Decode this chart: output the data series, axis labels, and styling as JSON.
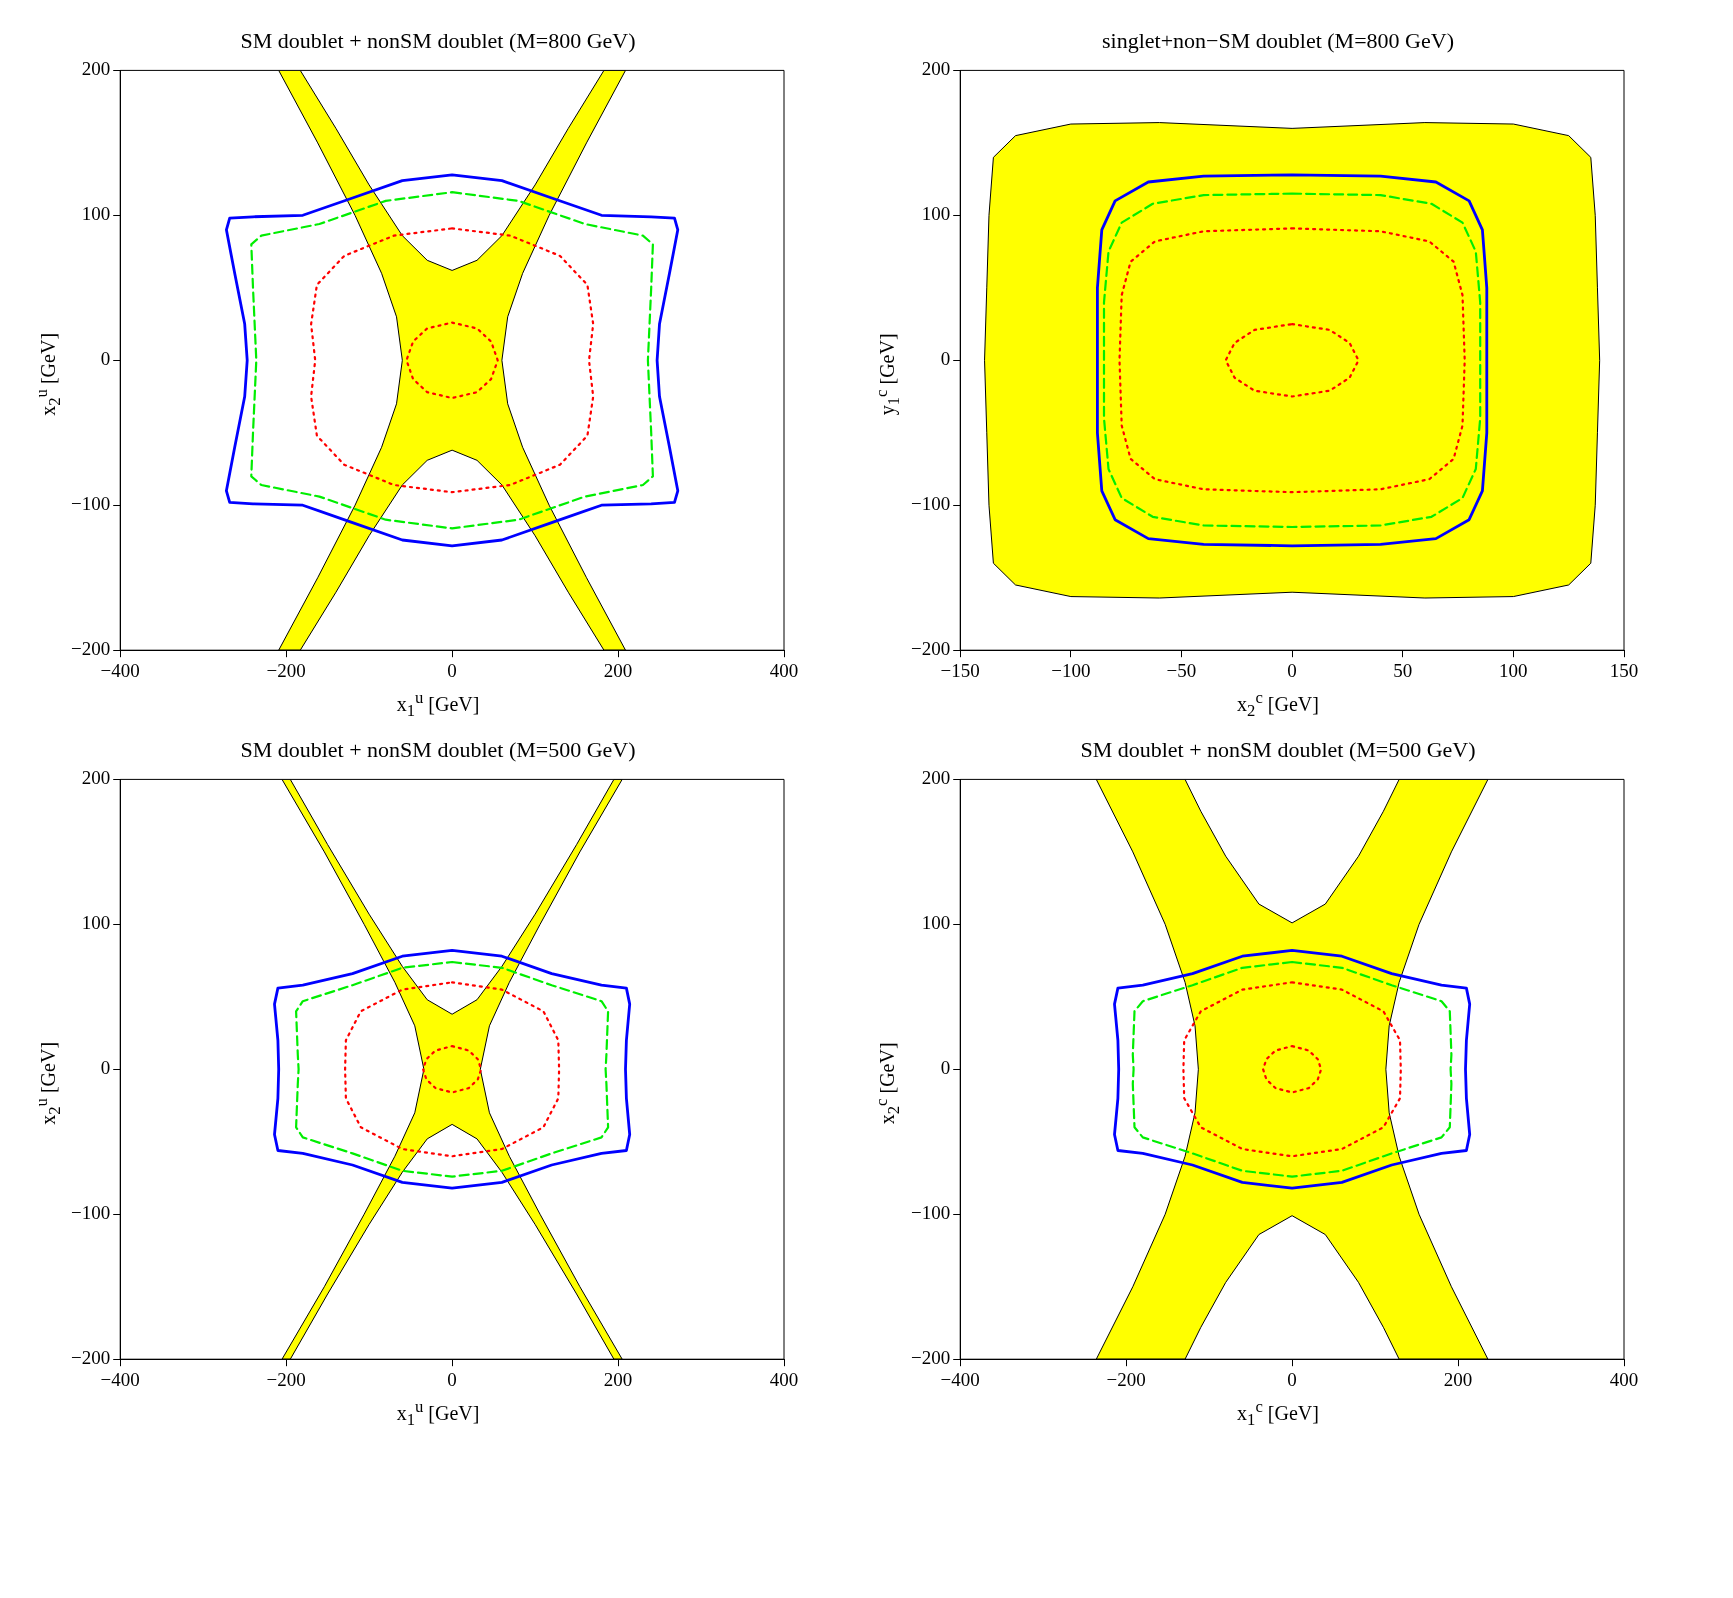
{
  "chart_data": [
    {
      "type": "area",
      "title": "SM doublet + nonSM doublet (M=800 GeV)",
      "xlabel": "x$_{1}$$^{u}$ [GeV]",
      "ylabel": "x$_{2}$$^{u}$ [GeV]",
      "xlim": [
        -400,
        400
      ],
      "ylim": [
        -200,
        200
      ],
      "xticks": [
        -400,
        -200,
        0,
        200,
        400
      ],
      "yticks": [
        -200,
        -100,
        0,
        100,
        200
      ],
      "grid": false,
      "legend": false,
      "series": [
        {
          "color": "#ffff00",
          "x": [
            -209,
            -162,
            -117,
            -85,
            -67,
            -60,
            -67,
            -85,
            -117,
            -162,
            -209,
            -183,
            -140,
            -100,
            -60,
            -30,
            0,
            30,
            60,
            100,
            140,
            183,
            209,
            162,
            117,
            85,
            67,
            60,
            67,
            85,
            117,
            162,
            209,
            183,
            140,
            100,
            60,
            30,
            0,
            -30,
            -60,
            -100,
            -140,
            -183
          ],
          "values": [
            200,
            150,
            100,
            60,
            30,
            0,
            -30,
            -60,
            -100,
            -150,
            -200,
            -200,
            -160,
            -121,
            -86,
            -69,
            -62,
            -69,
            -86,
            -121,
            -160,
            -200,
            -200,
            -150,
            -100,
            -60,
            -30,
            0,
            30,
            60,
            100,
            150,
            200,
            200,
            160,
            121,
            86,
            69,
            62,
            69,
            86,
            121,
            160,
            200
          ]
        }
      ]
    },
    {
      "type": "area",
      "title": "singlet+non−SM doublet (M=800 GeV)",
      "xlabel": "x$_{2}$$^{c}$ [GeV]",
      "ylabel": "y$_{1}$$^{c}$ [GeV]",
      "xlim": [
        -150,
        150
      ],
      "ylim": [
        -200,
        200
      ],
      "xticks": [
        -150,
        -100,
        -50,
        0,
        50,
        100,
        150
      ],
      "yticks": [
        -200,
        -100,
        0,
        100,
        200
      ],
      "grid": false,
      "legend": false,
      "series": [
        {
          "color": "#ffff00",
          "x": [
            0,
            60,
            100,
            125,
            135,
            137,
            138,
            139,
            138,
            137,
            135,
            125,
            100,
            60,
            0,
            -60,
            -100,
            -125,
            -135,
            -137,
            -138,
            -139,
            -138,
            -137,
            -135,
            -125,
            -100,
            -60,
            0
          ],
          "values": [
            160,
            164,
            163,
            155,
            140,
            100,
            50,
            0,
            -50,
            -100,
            -140,
            -155,
            -163,
            -164,
            -160,
            -164,
            -163,
            -155,
            -140,
            -100,
            -50,
            0,
            50,
            100,
            140,
            155,
            163,
            164,
            160
          ]
        }
      ]
    },
    {
      "type": "area",
      "title": "SM doublet + nonSM doublet (M=500 GeV)",
      "xlabel": "x$_{1}$$^{u}$ [GeV]",
      "ylabel": "x$_{2}$$^{u}$ [GeV]",
      "xlim": [
        -400,
        400
      ],
      "ylim": [
        -200,
        200
      ],
      "xticks": [
        -400,
        -200,
        0,
        200,
        400
      ],
      "yticks": [
        -200,
        -100,
        0,
        100,
        200
      ],
      "grid": false,
      "legend": false,
      "series": [
        {
          "color": "#ffff00",
          "x": [
            -205,
            -154,
            -106,
            -69,
            -45,
            -34,
            -45,
            -69,
            -106,
            -154,
            -205,
            -195,
            -150,
            -100,
            -60,
            -30,
            0,
            30,
            60,
            100,
            150,
            195,
            205,
            154,
            106,
            69,
            45,
            34,
            45,
            69,
            106,
            154,
            205,
            195,
            150,
            100,
            60,
            30,
            0,
            -30,
            -60,
            -100,
            -150,
            -195
          ],
          "values": [
            200,
            150,
            100,
            60,
            30,
            0,
            -30,
            -60,
            -100,
            -150,
            -200,
            -200,
            -155,
            -107,
            -71,
            -48,
            -38,
            -48,
            -71,
            -107,
            -155,
            -200,
            -200,
            -150,
            -100,
            -60,
            -30,
            0,
            30,
            60,
            100,
            150,
            200,
            200,
            155,
            107,
            71,
            48,
            38,
            48,
            71,
            107,
            155,
            200
          ]
        }
      ]
    },
    {
      "type": "area",
      "title": "SM doublet + nonSM doublet (M=500 GeV)",
      "xlabel": "x$_{1}$$^{c}$ [GeV]",
      "ylabel": "x$_{2}$$^{c}$ [GeV]",
      "xlim": [
        -400,
        400
      ],
      "ylim": [
        -200,
        200
      ],
      "xticks": [
        -400,
        -200,
        0,
        200,
        400
      ],
      "yticks": [
        -200,
        -100,
        0,
        100,
        200
      ],
      "grid": false,
      "legend": false,
      "series": [
        {
          "color": "#ffff00",
          "x": [
            -236,
            -192,
            -153,
            -129,
            -117,
            -113,
            -117,
            -129,
            -153,
            -192,
            -236,
            -129,
            -110,
            -80,
            -40,
            0,
            40,
            80,
            110,
            129,
            236,
            192,
            153,
            129,
            117,
            113,
            117,
            129,
            153,
            192,
            236,
            129,
            110,
            80,
            40,
            0,
            -40,
            -80,
            -110,
            -129
          ],
          "values": [
            200,
            150,
            100,
            60,
            30,
            0,
            -30,
            -60,
            -100,
            -150,
            -200,
            -200,
            -178,
            -147,
            -114,
            -101,
            -114,
            -147,
            -178,
            -200,
            -200,
            -150,
            -100,
            -60,
            -30,
            0,
            30,
            60,
            100,
            150,
            200,
            200,
            178,
            147,
            114,
            101,
            114,
            147,
            178,
            200
          ]
        }
      ]
    }
  ]
}
